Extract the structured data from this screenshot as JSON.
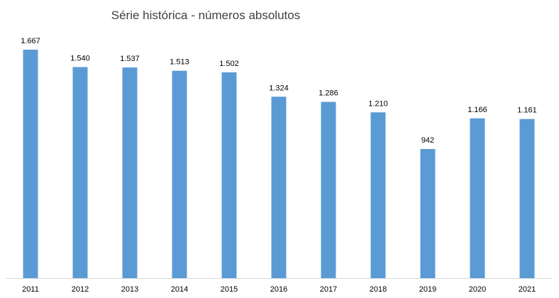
{
  "chart_data": {
    "type": "bar",
    "title": "Série histórica - números absolutos",
    "categories": [
      "2011",
      "2012",
      "2013",
      "2014",
      "2015",
      "2016",
      "2017",
      "2018",
      "2019",
      "2020",
      "2021"
    ],
    "values": [
      1667,
      1540,
      1537,
      1513,
      1502,
      1324,
      1286,
      1210,
      942,
      1166,
      1161
    ],
    "data_labels": [
      "1.667",
      "1.540",
      "1.537",
      "1.513",
      "1.502",
      "1.324",
      "1.286",
      "1.210",
      "942",
      "1.166",
      "1.161"
    ],
    "xlabel": "",
    "ylabel": "",
    "ylim": [
      0,
      1667
    ],
    "grid": false,
    "legend": "none",
    "colors": {
      "bar": "#5b9bd5",
      "axis": "#d9d9d9",
      "text": "#000000",
      "title": "#404040"
    }
  }
}
